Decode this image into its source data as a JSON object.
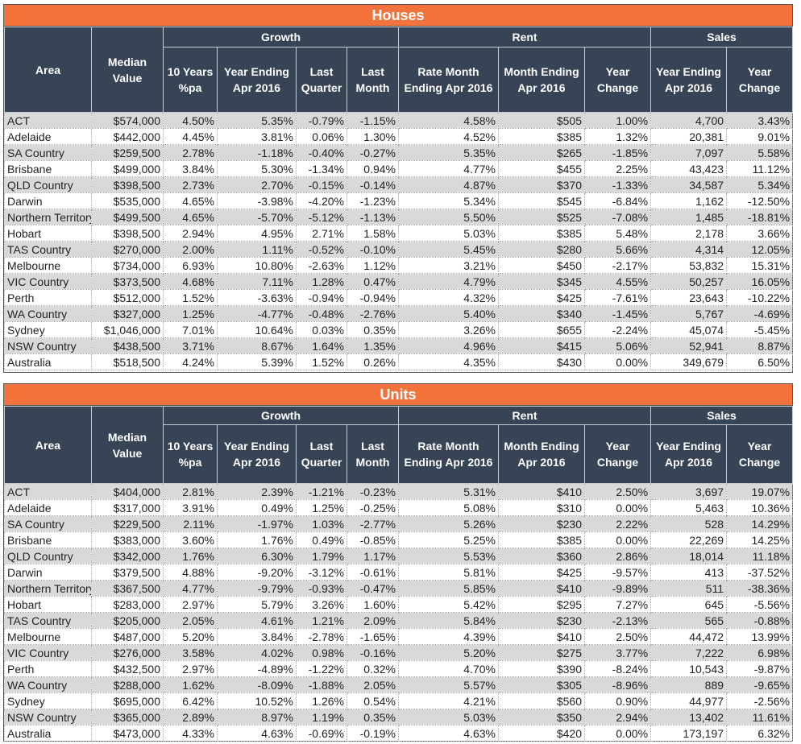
{
  "columns": {
    "area": "Area",
    "median": "Median\nValue",
    "growth": "Growth",
    "rent": "Rent",
    "sales": "Sales",
    "sub": [
      "10 Years %pa",
      "Year Ending Apr 2016",
      "Last Quarter",
      "Last Month",
      "Rate Month Ending Apr 2016",
      "Month Ending Apr 2016",
      "Year Change",
      "Year Ending Apr 2016",
      "Year Change"
    ]
  },
  "houses": {
    "title": "Houses",
    "rows": [
      [
        "ACT",
        "$574,000",
        "4.50%",
        "5.35%",
        "-0.79%",
        "-1.15%",
        "4.58%",
        "$505",
        "1.00%",
        "4,700",
        "3.43%"
      ],
      [
        "Adelaide",
        "$442,000",
        "4.45%",
        "3.81%",
        "0.06%",
        "1.30%",
        "4.52%",
        "$385",
        "1.32%",
        "20,381",
        "9.01%"
      ],
      [
        "SA Country",
        "$259,500",
        "2.78%",
        "-1.18%",
        "-0.40%",
        "-0.27%",
        "5.35%",
        "$265",
        "-1.85%",
        "7,097",
        "5.58%"
      ],
      [
        "Brisbane",
        "$499,000",
        "3.84%",
        "5.30%",
        "-1.34%",
        "0.94%",
        "4.77%",
        "$455",
        "2.25%",
        "43,423",
        "11.12%"
      ],
      [
        "QLD Country",
        "$398,500",
        "2.73%",
        "2.70%",
        "-0.15%",
        "-0.14%",
        "4.87%",
        "$370",
        "-1.33%",
        "34,587",
        "5.34%"
      ],
      [
        "Darwin",
        "$535,000",
        "4.65%",
        "-3.98%",
        "-4.20%",
        "-1.23%",
        "5.34%",
        "$545",
        "-6.84%",
        "1,162",
        "-12.50%"
      ],
      [
        "Northern Territory",
        "$499,500",
        "4.65%",
        "-5.70%",
        "-5.12%",
        "-1.13%",
        "5.50%",
        "$525",
        "-7.08%",
        "1,485",
        "-18.81%"
      ],
      [
        "Hobart",
        "$398,500",
        "2.94%",
        "4.95%",
        "2.71%",
        "1.58%",
        "5.03%",
        "$385",
        "5.48%",
        "2,178",
        "3.66%"
      ],
      [
        "TAS Country",
        "$270,000",
        "2.00%",
        "1.11%",
        "-0.52%",
        "-0.10%",
        "5.45%",
        "$280",
        "5.66%",
        "4,314",
        "12.05%"
      ],
      [
        "Melbourne",
        "$734,000",
        "6.93%",
        "10.80%",
        "-2.63%",
        "1.12%",
        "3.21%",
        "$450",
        "-2.17%",
        "53,832",
        "15.31%"
      ],
      [
        "VIC Country",
        "$373,500",
        "4.68%",
        "7.11%",
        "1.28%",
        "0.47%",
        "4.79%",
        "$345",
        "4.55%",
        "50,257",
        "16.05%"
      ],
      [
        "Perth",
        "$512,000",
        "1.52%",
        "-3.63%",
        "-0.94%",
        "-0.94%",
        "4.32%",
        "$425",
        "-7.61%",
        "23,643",
        "-10.22%"
      ],
      [
        "WA Country",
        "$327,000",
        "1.25%",
        "-4.77%",
        "-0.48%",
        "-2.76%",
        "5.40%",
        "$340",
        "-1.45%",
        "5,767",
        "-4.69%"
      ],
      [
        "Sydney",
        "$1,046,000",
        "7.01%",
        "10.64%",
        "0.03%",
        "0.35%",
        "3.26%",
        "$655",
        "-2.24%",
        "45,074",
        "-5.45%"
      ],
      [
        "NSW Country",
        "$438,500",
        "3.71%",
        "8.67%",
        "1.64%",
        "1.35%",
        "4.96%",
        "$415",
        "5.06%",
        "52,941",
        "8.87%"
      ],
      [
        "Australia",
        "$518,500",
        "4.24%",
        "5.39%",
        "1.52%",
        "0.26%",
        "4.35%",
        "$430",
        "0.00%",
        "349,679",
        "6.50%"
      ]
    ]
  },
  "units": {
    "title": "Units",
    "rows": [
      [
        "ACT",
        "$404,000",
        "2.81%",
        "2.39%",
        "-1.21%",
        "-0.23%",
        "5.31%",
        "$410",
        "2.50%",
        "3,697",
        "19.07%"
      ],
      [
        "Adelaide",
        "$317,000",
        "3.91%",
        "0.49%",
        "1.25%",
        "-0.25%",
        "5.08%",
        "$310",
        "0.00%",
        "5,463",
        "10.36%"
      ],
      [
        "SA Country",
        "$229,500",
        "2.11%",
        "-1.97%",
        "1.03%",
        "-2.77%",
        "5.26%",
        "$230",
        "2.22%",
        "528",
        "14.29%"
      ],
      [
        "Brisbane",
        "$383,000",
        "3.60%",
        "1.76%",
        "0.49%",
        "-0.85%",
        "5.25%",
        "$385",
        "0.00%",
        "22,269",
        "14.25%"
      ],
      [
        "QLD Country",
        "$342,000",
        "1.76%",
        "6.30%",
        "1.79%",
        "1.17%",
        "5.53%",
        "$360",
        "2.86%",
        "18,014",
        "11.18%"
      ],
      [
        "Darwin",
        "$379,500",
        "4.88%",
        "-9.20%",
        "-3.12%",
        "-0.61%",
        "5.81%",
        "$425",
        "-9.57%",
        "413",
        "-37.52%"
      ],
      [
        "Northern Territory",
        "$367,500",
        "4.77%",
        "-9.79%",
        "-0.93%",
        "-0.47%",
        "5.85%",
        "$410",
        "-9.89%",
        "511",
        "-38.36%"
      ],
      [
        "Hobart",
        "$283,000",
        "2.97%",
        "5.79%",
        "3.26%",
        "1.60%",
        "5.42%",
        "$295",
        "7.27%",
        "645",
        "-5.56%"
      ],
      [
        "TAS Country",
        "$205,000",
        "2.05%",
        "4.61%",
        "1.21%",
        "2.09%",
        "5.84%",
        "$230",
        "-2.13%",
        "565",
        "-0.88%"
      ],
      [
        "Melbourne",
        "$487,000",
        "5.20%",
        "3.84%",
        "-2.78%",
        "-1.65%",
        "4.39%",
        "$410",
        "2.50%",
        "44,472",
        "13.99%"
      ],
      [
        "VIC Country",
        "$276,000",
        "3.58%",
        "4.02%",
        "0.98%",
        "-0.16%",
        "5.20%",
        "$275",
        "3.77%",
        "7,222",
        "6.98%"
      ],
      [
        "Perth",
        "$432,500",
        "2.97%",
        "-4.89%",
        "-1.22%",
        "0.32%",
        "4.70%",
        "$390",
        "-8.24%",
        "10,543",
        "-9.87%"
      ],
      [
        "WA Country",
        "$288,000",
        "1.62%",
        "-8.09%",
        "-1.88%",
        "2.05%",
        "5.57%",
        "$305",
        "-8.96%",
        "889",
        "-9.65%"
      ],
      [
        "Sydney",
        "$695,000",
        "6.42%",
        "10.52%",
        "1.26%",
        "0.54%",
        "4.21%",
        "$560",
        "0.90%",
        "44,977",
        "-2.56%"
      ],
      [
        "NSW Country",
        "$365,000",
        "2.89%",
        "8.97%",
        "1.19%",
        "0.35%",
        "5.03%",
        "$350",
        "2.94%",
        "13,402",
        "11.61%"
      ],
      [
        "Australia",
        "$473,000",
        "4.33%",
        "4.63%",
        "-0.69%",
        "-0.19%",
        "4.63%",
        "$420",
        "0.00%",
        "173,197",
        "6.32%"
      ]
    ]
  }
}
